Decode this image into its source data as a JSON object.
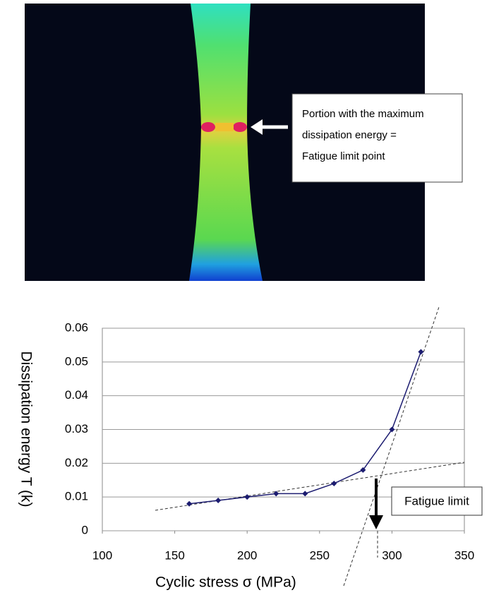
{
  "thermal_image": {
    "callout": [
      "Portion with the maximum",
      "dissipation energy =",
      "Fatigue limit point"
    ]
  },
  "chart_data": {
    "type": "line",
    "x": [
      160,
      180,
      200,
      220,
      240,
      260,
      280,
      300,
      320
    ],
    "values": [
      0.008,
      0.009,
      0.01,
      0.011,
      0.011,
      0.014,
      0.018,
      0.03,
      0.053
    ],
    "color": "#1c1c70",
    "x_label": "Cyclic stress σ (MPa)",
    "y_label": "Dissipation energy T (k)",
    "annotation": "Fatigue limit",
    "xlim": [
      100,
      350
    ],
    "xticks": [
      100,
      150,
      200,
      250,
      300,
      350
    ],
    "ylim": [
      0,
      0.06
    ],
    "yticks": [
      0,
      0.01,
      0.02,
      0.03,
      0.04,
      0.05,
      0.06
    ],
    "grid": true
  }
}
